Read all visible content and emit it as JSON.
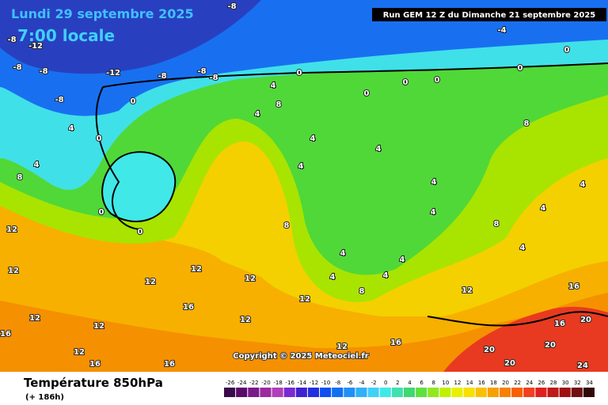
{
  "title_date": "Lundi 29 septembre 2025",
  "title_time": "7:00 locale",
  "run": "Run GEM 12 Z du Dimanche 21 septembre 2025",
  "copyright": "Copyright © 2025 Meteociel.fr",
  "footer": {
    "title": "Température 850hPa",
    "subtitle": "(+ 186h)"
  },
  "colorbar": {
    "ticks": [
      -26,
      -24,
      -22,
      -20,
      -18,
      -16,
      -14,
      -12,
      -10,
      -8,
      -6,
      -4,
      -2,
      0,
      2,
      4,
      6,
      8,
      10,
      12,
      14,
      16,
      18,
      20,
      22,
      24,
      26,
      28,
      30,
      32,
      34
    ],
    "colors": [
      "#3a0a4a",
      "#5a0a6a",
      "#7a1a8a",
      "#9a2aa0",
      "#b040b8",
      "#7a2ad0",
      "#4020d0",
      "#2030e0",
      "#1050f0",
      "#1070f0",
      "#2090f8",
      "#30b0f8",
      "#40d0f8",
      "#40e8e8",
      "#40e0b0",
      "#40d870",
      "#60e040",
      "#90e820",
      "#c0f000",
      "#e8f000",
      "#f8e000",
      "#f8c000",
      "#f8a000",
      "#f88000",
      "#f86000",
      "#f04020",
      "#e02020",
      "#c01818",
      "#a01010",
      "#701010",
      "#300808"
    ]
  },
  "contour_labels": [
    -8,
    -8,
    -12,
    -8,
    -8,
    -12,
    -8,
    -8,
    -8,
    -8,
    0,
    0,
    4,
    8,
    4,
    0,
    0,
    0,
    0,
    0,
    -4,
    4,
    0,
    4,
    8,
    0,
    0,
    4,
    4,
    4,
    4,
    4,
    8,
    8,
    4,
    4,
    4,
    4,
    4,
    4,
    4,
    8,
    8,
    12,
    12,
    12,
    12,
    12,
    12,
    16,
    12,
    12,
    12,
    16,
    12,
    16,
    16,
    16,
    20,
    20,
    16,
    16,
    20,
    24,
    12,
    20,
    12
  ]
}
